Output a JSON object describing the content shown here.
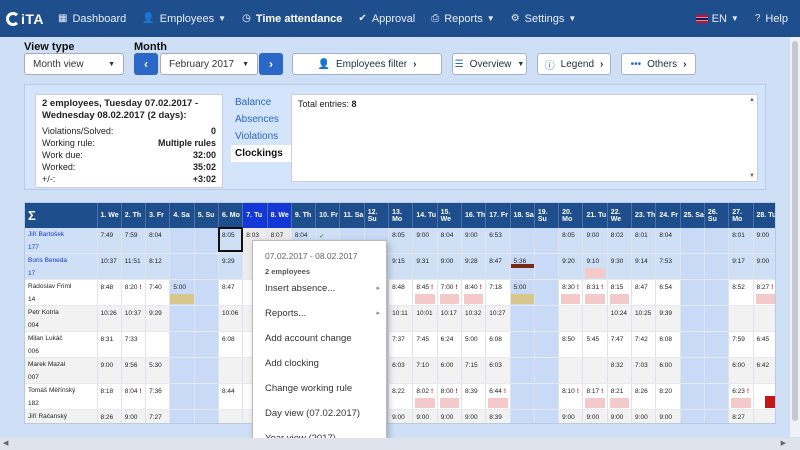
{
  "nav": {
    "logo": "iTA",
    "items": [
      {
        "label": "Dashboard",
        "icon": "grid-icon"
      },
      {
        "label": "Employees",
        "icon": "person-icon",
        "caret": true
      },
      {
        "label": "Time attendance",
        "icon": "clock-icon",
        "active": true
      },
      {
        "label": "Approval",
        "icon": "check-circle-icon"
      },
      {
        "label": "Reports",
        "icon": "printer-icon",
        "caret": true
      },
      {
        "label": "Settings",
        "icon": "gear-icon",
        "caret": true
      }
    ],
    "lang": "EN",
    "help": "Help"
  },
  "toolbar": {
    "view_type_label": "View type",
    "view_type_value": "Month view",
    "month_label": "Month",
    "month_value": "February 2017",
    "employees_filter": "Employees filter",
    "overview": "Overview",
    "legend": "Legend",
    "others": "Others"
  },
  "summary": {
    "head": "2 employees, Tuesday 07.02.2017 - Wednesday 08.02.2017 (2 days):",
    "rows": [
      {
        "k": "Violations/Solved:",
        "v": "0"
      },
      {
        "k": "Working rule:",
        "v": "Multiple rules"
      },
      {
        "k": "Work due:",
        "v": "32:00"
      },
      {
        "k": "Worked:",
        "v": "35:02"
      },
      {
        "k": "+/-:",
        "v": "+3:02"
      }
    ],
    "tabs": [
      "Balance",
      "Absences",
      "Violations",
      "Clockings"
    ],
    "active_tab": "Clockings",
    "entries_label": "Total entries:",
    "entries_value": "8"
  },
  "grid": {
    "sigma": "Σ",
    "days": [
      "1. We",
      "2. Th",
      "3. Fr",
      "4. Sa",
      "5. Su",
      "6. Mo",
      "7. Tu",
      "8. We",
      "9. Th",
      "10. Fr",
      "11. Sa",
      "12. Su",
      "13. Mo",
      "14. Tu",
      "15. We",
      "16. Th",
      "17. Fr",
      "18. Sa",
      "19. Su",
      "20. Mo",
      "21. Tu",
      "22. We",
      "23. Th",
      "24. Fr",
      "25. Sa",
      "26. Su",
      "27. Mo",
      "28. Tu"
    ],
    "rows": [
      {
        "name": "Jiří Bartošek",
        "id": "177",
        "hi": true,
        "cells": [
          "7:49",
          "7:59",
          "8:04",
          "",
          "",
          "8:05",
          "8:03",
          "8:07",
          "8:04",
          "✓",
          "",
          "",
          "8:05",
          "9:00",
          "8:04",
          "9:00",
          "6:53",
          "",
          "",
          "8:05",
          "9:00",
          "8:02",
          "8:01",
          "8:04",
          "",
          "",
          "8:01",
          "9:00"
        ]
      },
      {
        "name": "Boris Beneda",
        "id": "17",
        "hi": true,
        "cells": [
          "10:37",
          "11:51",
          "8:12",
          "",
          "",
          "9:29",
          "",
          "",
          "",
          "",
          "",
          "",
          "9:15",
          "9:31",
          "9:00",
          "9:28",
          "8:47",
          "5:36",
          "",
          "9:20",
          "9:10",
          "9:30",
          "9:14",
          "7:53",
          "",
          "",
          "9:17",
          "9:00"
        ]
      },
      {
        "name": "Radoslav Friml",
        "id": "14",
        "cells": [
          "8:48",
          "8:20",
          "7:40",
          "5:00",
          "",
          "8:47",
          "",
          "",
          "",
          "",
          "",
          "",
          "8:48",
          "8:45",
          "7:00",
          "8:40",
          "7:18",
          "5:00",
          "",
          "8:30",
          "8:31",
          "8:15",
          "8:47",
          "6:54",
          "",
          "",
          "8:52",
          "8:27"
        ]
      },
      {
        "name": "Petr Kotrla",
        "id": "004",
        "cells": [
          "10:26",
          "10:37",
          "9:29",
          "",
          "",
          "10:06",
          "",
          "",
          "",
          "",
          "",
          "",
          "10:11",
          "10:01",
          "10:17",
          "10:32",
          "10:27",
          "",
          "",
          "",
          "",
          "10:24",
          "10:25",
          "9:39",
          "",
          "",
          "",
          ""
        ]
      },
      {
        "name": "Milan Lukáč",
        "id": "006",
        "cells": [
          "8:31",
          "7:33",
          "",
          "",
          "",
          "6:08",
          "",
          "",
          "",
          "",
          "",
          "",
          "7:37",
          "7:45",
          "6:24",
          "5:00",
          "6:08",
          "",
          "",
          "8:50",
          "5:45",
          "7:47",
          "7:42",
          "6:08",
          "",
          "",
          "7:59",
          "6:45"
        ]
      },
      {
        "name": "Marek Mazal",
        "id": "007",
        "cells": [
          "9:00",
          "9:56",
          "5:30",
          "",
          "",
          "",
          "",
          "",
          "",
          "",
          "",
          "",
          "6:03",
          "7:10",
          "6:00",
          "7:15",
          "6:03",
          "",
          "",
          "",
          "",
          "8:32",
          "7:03",
          "6:00",
          "",
          "",
          "6:00",
          "6:42"
        ]
      },
      {
        "name": "Tomáš Měřínský",
        "id": "182",
        "cells": [
          "8:18",
          "8:04",
          "7:36",
          "",
          "",
          "8:44",
          "",
          "",
          "",
          "",
          "",
          "",
          "8:22",
          "8:02",
          "8:00",
          "8:39",
          "6:44",
          "",
          "",
          "8:10",
          "8:17",
          "8:21",
          "8:26",
          "8:20",
          "",
          "",
          "6:23",
          ""
        ]
      },
      {
        "name": "Jiří Račanský",
        "id": "79",
        "cells": [
          "8:26",
          "9:00",
          "7:27",
          "",
          "",
          "",
          "",
          "",
          "",
          "",
          "",
          "",
          "9:00",
          "9:00",
          "9:00",
          "9:00",
          "8:39",
          "",
          "",
          "9:00",
          "9:00",
          "9:00",
          "9:00",
          "9:00",
          "",
          "",
          "8:27",
          ""
        ]
      }
    ]
  },
  "context_menu": {
    "date": "07.02.2017 - 08.02.2017",
    "sub": "2 employees",
    "items": [
      {
        "label": "Insert absence...",
        "sub": true
      },
      {
        "label": "Reports...",
        "sub": true
      },
      {
        "label": "Add account change"
      },
      {
        "label": "Add clocking"
      },
      {
        "label": "Change working rule"
      },
      {
        "label": "Day view (07.02.2017)"
      },
      {
        "label": "Year view (2017)"
      }
    ]
  },
  "colors": {
    "nav_bg": "#1f4e8c",
    "accent": "#2a67c6",
    "selected_col": "#1438d6",
    "weekend": "#c8daf6",
    "warn": "#d11111"
  }
}
